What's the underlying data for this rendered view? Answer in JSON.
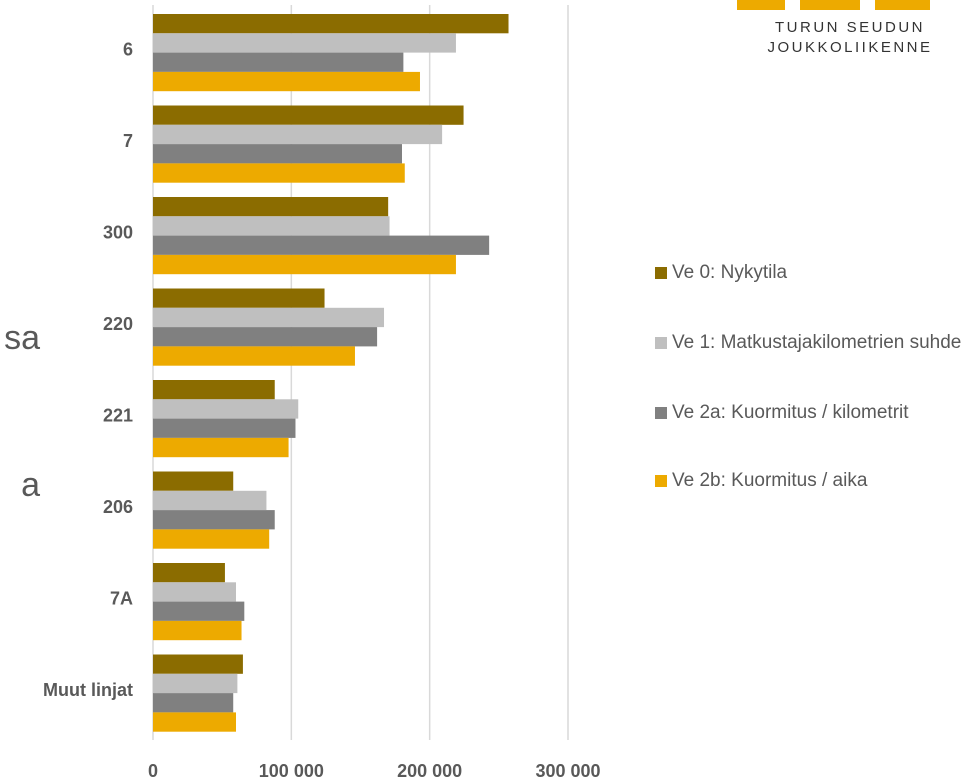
{
  "logo": {
    "lines": [
      "TURUN SEUDUN",
      "JOUKKOLIIKENNE"
    ]
  },
  "side_text": [
    "sa",
    "a"
  ],
  "chart_data": {
    "type": "barh",
    "categories": [
      "6",
      "7",
      "300",
      "220",
      "221",
      "206",
      "7A",
      "Muut linjat"
    ],
    "series": [
      {
        "name": "Ve 0: Nykytila",
        "color": "#8b6c00",
        "values": [
          257000,
          224500,
          170000,
          124000,
          88000,
          58000,
          52000,
          65000
        ]
      },
      {
        "name": "Ve 1: Matkustajakilometrien suhde",
        "color": "#bfbfbf",
        "values": [
          219000,
          209000,
          171000,
          167000,
          105000,
          82000,
          60000,
          61000
        ]
      },
      {
        "name": "Ve 2a: Kuormitus / kilometrit",
        "color": "#808080",
        "values": [
          181000,
          180000,
          243000,
          162000,
          103000,
          88000,
          66000,
          58000
        ]
      },
      {
        "name": "Ve 2b: Kuormitus / aika",
        "color": "#edaa00",
        "values": [
          193000,
          182000,
          219000,
          146000,
          98000,
          84000,
          64000,
          60000
        ]
      }
    ],
    "xlim": [
      0,
      300000
    ],
    "xticks": [
      0,
      {
        "value": 100000,
        "label": "100 000"
      },
      {
        "value": 200000,
        "label": "200 000"
      },
      {
        "value": 300000,
        "label": "300 000"
      }
    ],
    "grid": true,
    "legend": "right"
  }
}
